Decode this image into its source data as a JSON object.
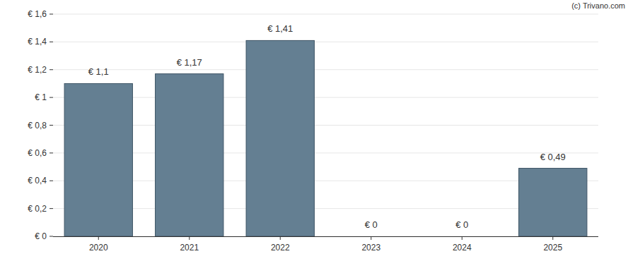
{
  "chart_data": {
    "type": "bar",
    "categories": [
      "2020",
      "2021",
      "2022",
      "2023",
      "2024",
      "2025"
    ],
    "values": [
      1.1,
      1.17,
      1.41,
      0,
      0,
      0.49
    ],
    "value_labels": [
      "€ 1,1",
      "€ 1,17",
      "€ 1,41",
      "€ 0",
      "€ 0",
      "€ 0,49"
    ],
    "data_labels": true,
    "color": "#647f92",
    "ylim": [
      0,
      1.6
    ],
    "yticks": [
      {
        "value": 0,
        "label": "€ 0"
      },
      {
        "value": 0.2,
        "label": "€ 0,2"
      },
      {
        "value": 0.4,
        "label": "€ 0,4"
      },
      {
        "value": 0.6,
        "label": "€ 0,6"
      },
      {
        "value": 0.8,
        "label": "€ 0,8"
      },
      {
        "value": 1,
        "label": "€ 1"
      },
      {
        "value": 1.2,
        "label": "€ 1,2"
      },
      {
        "value": 1.4,
        "label": "€ 1,4"
      },
      {
        "value": 1.6,
        "label": "€ 1,6"
      }
    ],
    "grid": true,
    "annotations": [
      "(c) Trivano.com"
    ]
  }
}
